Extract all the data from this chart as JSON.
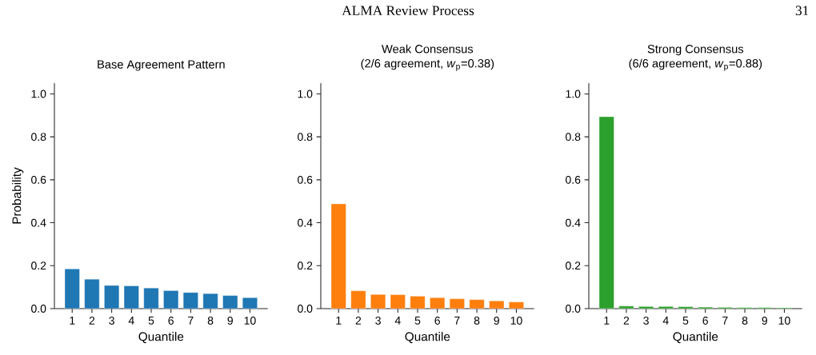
{
  "chart_data": [
    {
      "type": "bar",
      "title": "Base Agreement Pattern",
      "xlabel": "Quantile",
      "ylabel": "Probability",
      "annotations": [
        "ALMA Review Process",
        "31"
      ],
      "categories": [
        "1",
        "2",
        "3",
        "4",
        "5",
        "6",
        "7",
        "8",
        "9",
        "10"
      ],
      "values": [
        0.185,
        0.137,
        0.108,
        0.106,
        0.096,
        0.084,
        0.075,
        0.07,
        0.061,
        0.051
      ],
      "color": "#1f77b4",
      "ylim": [
        0,
        1.05
      ],
      "yticks": [
        {
          "value": 0,
          "label": "0.0"
        },
        {
          "value": 0.2,
          "label": "0.2"
        },
        {
          "value": 0.4,
          "label": "0.4"
        },
        {
          "value": 0.6,
          "label": "0.6"
        },
        {
          "value": 0.8,
          "label": "0.8"
        },
        {
          "value": 1.0,
          "label": "1.0"
        }
      ]
    },
    {
      "type": "bar",
      "title": "Weak Consensus",
      "subtitle": "(2/6 agreement, *w*$_{p}$=0.38)",
      "xlabel": "Quantile",
      "categories": [
        "1",
        "2",
        "3",
        "4",
        "5",
        "6",
        "7",
        "8",
        "9",
        "10"
      ],
      "values": [
        0.488,
        0.083,
        0.066,
        0.065,
        0.058,
        0.051,
        0.046,
        0.042,
        0.036,
        0.031
      ],
      "color": "#ff7f0e",
      "ylim": [
        0,
        1.05
      ],
      "yticks": [
        {
          "value": 0,
          "label": "0.0"
        },
        {
          "value": 0.2,
          "label": "0.2"
        },
        {
          "value": 0.4,
          "label": "0.4"
        },
        {
          "value": 0.6,
          "label": "0.6"
        },
        {
          "value": 0.8,
          "label": "0.8"
        },
        {
          "value": 1.0,
          "label": "1.0"
        }
      ]
    },
    {
      "type": "bar",
      "title": "Strong Consensus",
      "subtitle": "(6/6 agreement, *w*$_{p}$=0.88)",
      "xlabel": "Quantile",
      "categories": [
        "1",
        "2",
        "3",
        "4",
        "5",
        "6",
        "7",
        "8",
        "9",
        "10"
      ],
      "values": [
        0.894,
        0.012,
        0.01,
        0.01,
        0.009,
        0.007,
        0.006,
        0.005,
        0.005,
        0.004
      ],
      "color": "#2ca02c",
      "ylim": [
        0,
        1.05
      ],
      "yticks": [
        {
          "value": 0,
          "label": "0.0"
        },
        {
          "value": 0.2,
          "label": "0.2"
        },
        {
          "value": 0.4,
          "label": "0.4"
        },
        {
          "value": 0.6,
          "label": "0.6"
        },
        {
          "value": 0.8,
          "label": "0.8"
        },
        {
          "value": 1.0,
          "label": "1.0"
        }
      ]
    }
  ]
}
